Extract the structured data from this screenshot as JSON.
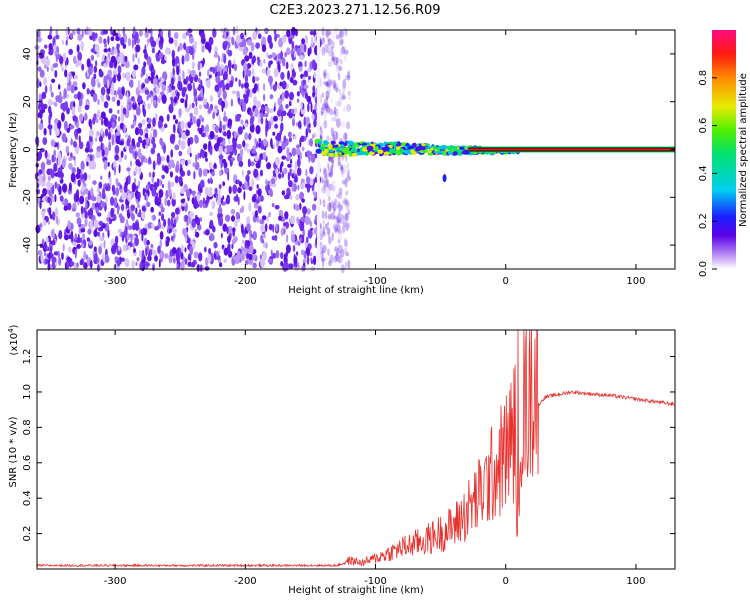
{
  "title": "C2E3.2023.271.12.56.R09",
  "chart_data": [
    {
      "type": "heatmap",
      "name": "spectrogram",
      "xlabel": "Height of straight line (km)",
      "ylabel": "Frequency (Hz)",
      "xlim": [
        -360,
        130
      ],
      "ylim": [
        -50,
        50
      ],
      "xticks": [
        -300,
        -200,
        -100,
        0,
        100
      ],
      "yticks": [
        -40,
        -20,
        0,
        20,
        40
      ],
      "noise_region_km": [
        -360,
        -120
      ],
      "signal_start_km": -145,
      "stable_line_km": [
        10,
        130
      ],
      "carrier_frequency_hz": 0,
      "colorbar": {
        "label": "Normalized spectral amplitude",
        "range": [
          0.0,
          1.0
        ],
        "ticks": [
          0.0,
          0.2,
          0.4,
          0.6,
          0.8
        ]
      }
    },
    {
      "type": "line",
      "name": "snr",
      "series": [
        {
          "name": "SNR",
          "color": "#e8302c"
        }
      ],
      "xlabel": "Height of straight line (km)",
      "ylabel": "SNR (10 * v/v)",
      "multiplier": "(x10",
      "multiplier_exp": "4",
      "multiplier_close": ")",
      "xlim": [
        -360,
        130
      ],
      "ylim": [
        0,
        1.35
      ],
      "xticks": [
        -300,
        -200,
        -100,
        0,
        100
      ],
      "yticks": [
        0.2,
        0.4,
        0.6,
        0.8,
        1.0,
        1.2
      ],
      "profile_x_km": [
        -360,
        -130,
        -120,
        -110,
        -100,
        -80,
        -60,
        -40,
        -30,
        -20,
        -10,
        0,
        10,
        20,
        30,
        50,
        80,
        100,
        130
      ],
      "profile_y": [
        0.02,
        0.02,
        0.04,
        0.03,
        0.05,
        0.1,
        0.14,
        0.2,
        0.27,
        0.35,
        0.45,
        0.55,
        0.7,
        0.88,
        0.97,
        1.0,
        0.98,
        0.96,
        0.93
      ],
      "peak": {
        "x_km": 9,
        "y": 1.35
      }
    }
  ]
}
